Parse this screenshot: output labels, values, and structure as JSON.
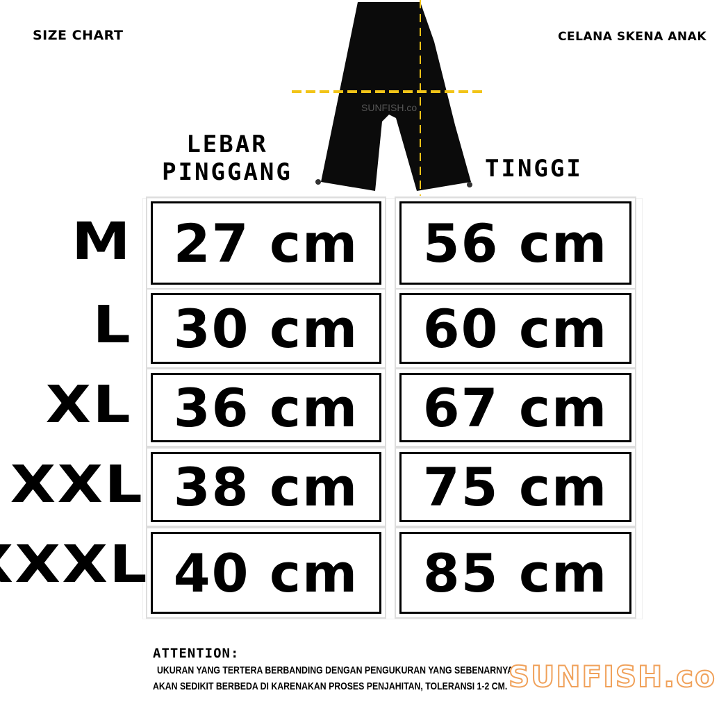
{
  "header": {
    "left": "SIZE CHART",
    "right": "CELANA SKENA ANAK"
  },
  "product_image": {
    "watermark": "SUNFISH.co",
    "guide_color": "#f2c418"
  },
  "columns": [
    "LEBAR PINGGANG",
    "TINGGI"
  ],
  "column_lines": {
    "waist": [
      "LEBAR",
      "PINGGANG"
    ]
  },
  "rows": [
    {
      "size": "M",
      "lebar_pinggang": "27 cm",
      "tinggi": "56 cm"
    },
    {
      "size": "L",
      "lebar_pinggang": "30 cm",
      "tinggi": "60 cm"
    },
    {
      "size": "XL",
      "lebar_pinggang": "36 cm",
      "tinggi": "67 cm"
    },
    {
      "size": "XXL",
      "lebar_pinggang": "38 cm",
      "tinggi": "75 cm"
    },
    {
      "size": "XXXL",
      "lebar_pinggang": "40 cm",
      "tinggi": "85 cm"
    }
  ],
  "attention": {
    "title": "ATTENTION:",
    "line1": "UKURAN YANG TERTERA BERBANDING DENGAN PENGUKURAN YANG SEBENARNYA",
    "line2": "AKAN SEDIKIT BERBEDA DI KARENAKAN PROSES PENJAHITAN, TOLERANSI 1-2 CM."
  },
  "logo": {
    "text": "SUNFISH.co",
    "color": "#f0a15a"
  }
}
